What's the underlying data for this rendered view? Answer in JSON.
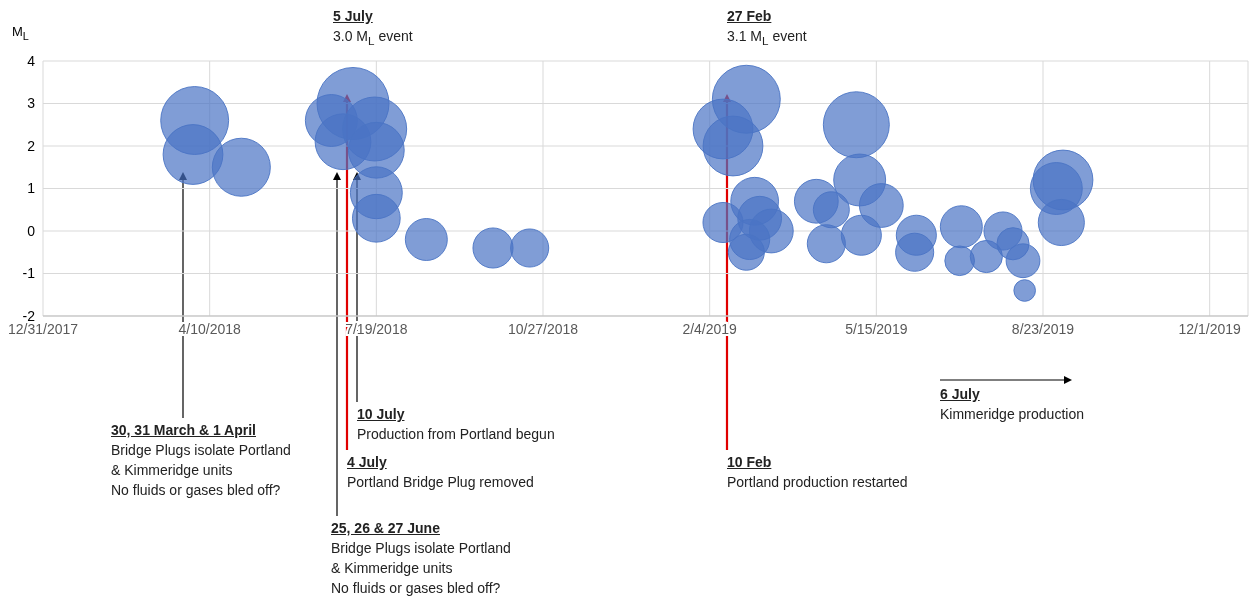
{
  "chart_data": {
    "type": "bubble",
    "ylabel": "M$_{L}$",
    "color": "#4a74c4",
    "x": [
      "2018-04-01",
      "2018-03-31",
      "2018-04-29",
      "2018-06-22",
      "2018-06-29",
      "2018-07-05",
      "2018-07-18",
      "2018-07-19",
      "2018-07-19",
      "2018-07-19",
      "2018-08-18",
      "2018-09-27",
      "2018-10-19",
      "2019-02-12",
      "2019-02-18",
      "2019-02-26",
      "2019-02-12",
      "2019-03-03",
      "2019-03-06",
      "2019-03-13",
      "2019-02-28",
      "2019-02-26",
      "2019-04-09",
      "2019-04-18",
      "2019-04-15",
      "2019-05-03",
      "2019-05-05",
      "2019-05-18",
      "2019-05-06",
      "2019-06-08",
      "2019-06-07",
      "2019-07-05",
      "2019-07-04",
      "2019-07-20",
      "2019-07-30",
      "2019-08-05",
      "2019-08-11",
      "2019-08-12",
      "2019-09-04",
      "2019-08-31",
      "2019-09-03"
    ],
    "values": [
      2.6,
      1.8,
      1.5,
      2.6,
      2.1,
      3.0,
      2.4,
      1.9,
      0.9,
      0.3,
      -0.2,
      -0.4,
      -0.4,
      2.4,
      2.0,
      3.1,
      0.2,
      0.7,
      0.3,
      0.0,
      -0.2,
      -0.5,
      0.7,
      0.5,
      -0.3,
      2.5,
      1.2,
      0.6,
      -0.1,
      -0.1,
      -0.5,
      0.1,
      -0.7,
      -0.6,
      0.0,
      -0.3,
      -0.7,
      -1.4,
      1.2,
      1.0,
      0.2
    ],
    "sizes": [
      0.89,
      0.69,
      0.65,
      0.52,
      0.6,
      1,
      0.79,
      0.6,
      0.52,
      0.44,
      0.34,
      0.31,
      0.28,
      0.69,
      0.69,
      0.89,
      0.31,
      0.44,
      0.37,
      0.37,
      0.31,
      0.25,
      0.37,
      0.25,
      0.28,
      0.84,
      0.52,
      0.37,
      0.31,
      0.31,
      0.28,
      0.34,
      0.17,
      0.2,
      0.28,
      0.2,
      0.22,
      0.09,
      0.69,
      0.52,
      0.41
    ],
    "xlim": [
      "2017-12-31",
      "2019-12-24"
    ],
    "xticks": [
      {
        "value": "2017-12-31",
        "label": "12/31/2017"
      },
      {
        "value": "2018-04-10",
        "label": "4/10/2018"
      },
      {
        "value": "2018-07-19",
        "label": "7/19/2018"
      },
      {
        "value": "2018-10-27",
        "label": "10/27/2018"
      },
      {
        "value": "2019-02-04",
        "label": "2/4/2019"
      },
      {
        "value": "2019-05-15",
        "label": "5/15/2019"
      },
      {
        "value": "2019-08-23",
        "label": "8/23/2019"
      },
      {
        "value": "2019-12-01",
        "label": "12/1/2019"
      }
    ],
    "ylim": [
      -2,
      4
    ],
    "yticks": [
      -2,
      -1,
      0,
      1,
      2,
      3,
      4
    ],
    "grid": true,
    "annotations": [
      "5 July\n3.0 M$_{L}$ event",
      "27 Feb\n3.1 M$_{L}$ event",
      "30, 31 March & 1 April\nBridge Plugs isolate Portland\n& Kimmeridge units\nNo fluids or gases bled off?",
      "25, 26 & 27 June\nBridge Plugs isolate Portland\n& Kimmeridge units\nNo fluids or gases bled off?",
      "4 July\nPortland Bridge Plug removed",
      "10 July\nProduction from Portland begun",
      "10 Feb\nPortland production restarted",
      "6 July\nKimmeridge production"
    ]
  }
}
